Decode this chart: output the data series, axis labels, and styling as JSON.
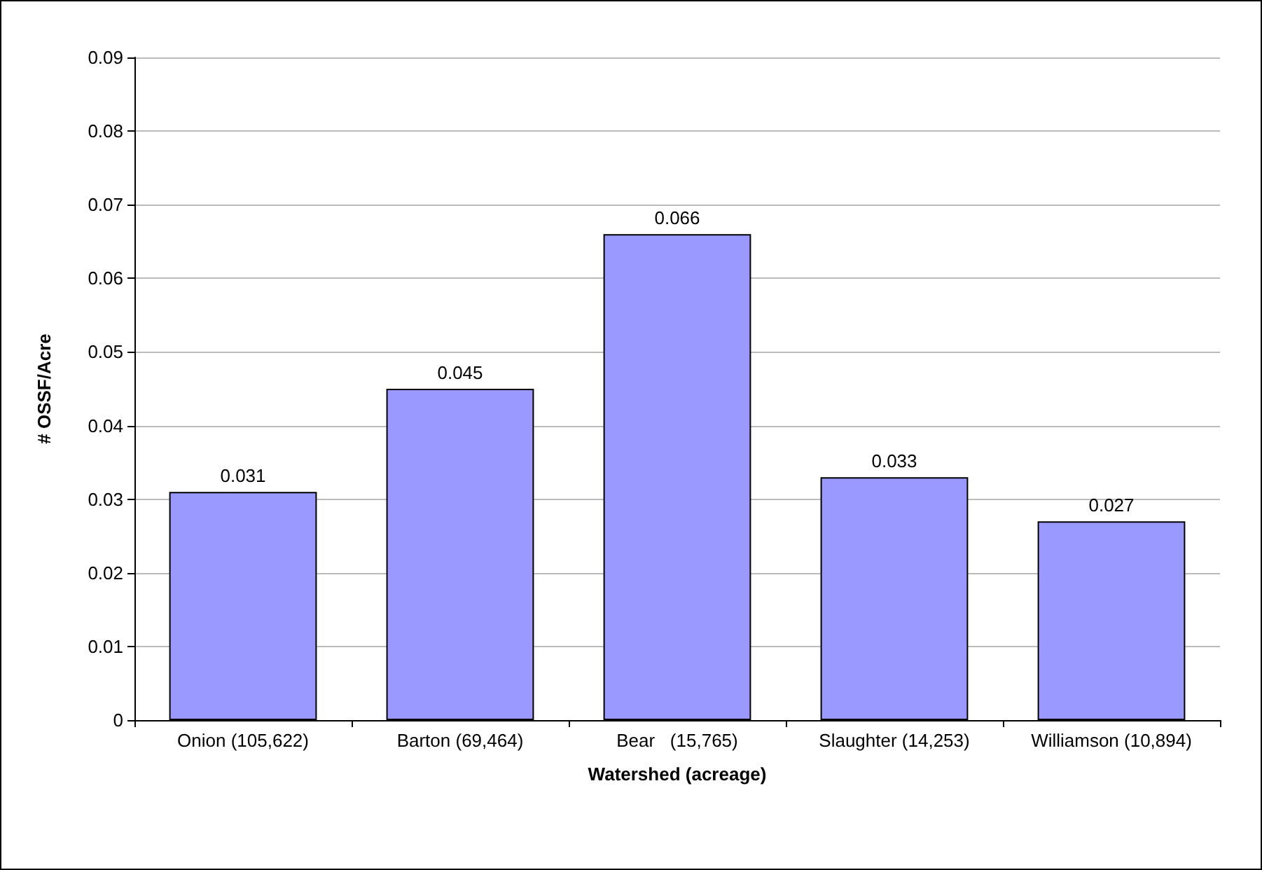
{
  "chart_data": {
    "type": "bar",
    "xlabel": "Watershed (acreage)",
    "ylabel": "# OSSF/Acre",
    "categories": [
      "Onion (105,622)",
      "Barton (69,464)",
      "Bear   (15,765)",
      "Slaughter (14,253)",
      "Williamson (10,894)"
    ],
    "values": [
      0.031,
      0.045,
      0.066,
      0.033,
      0.027
    ],
    "color": "#9999ff",
    "ylim": [
      0,
      0.09
    ],
    "yticks": [
      0,
      0.01,
      0.02,
      0.03,
      0.04,
      0.05,
      0.06,
      0.07,
      0.08,
      0.09
    ],
    "grid": "y",
    "data_labels": true
  }
}
